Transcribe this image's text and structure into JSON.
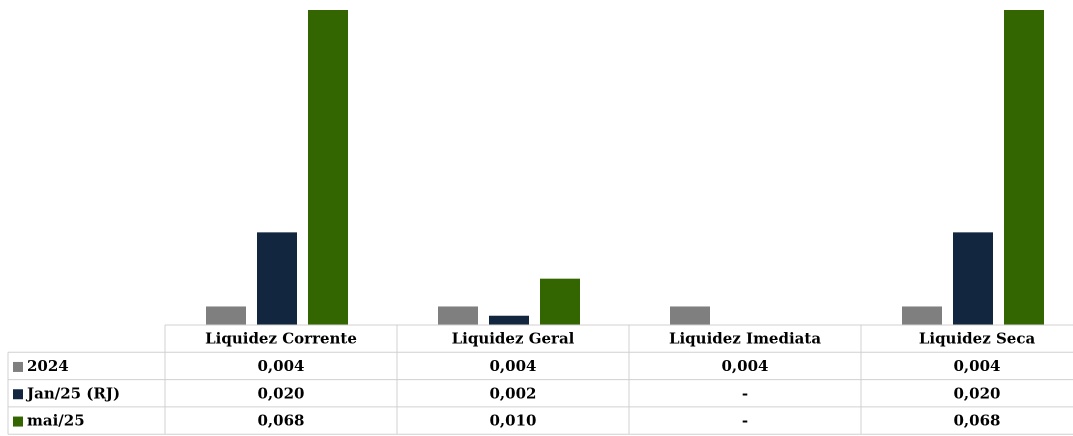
{
  "chart_data": {
    "type": "bar",
    "categories": [
      "Liquidez Corrente",
      "Liquidez Geral",
      "Liquidez Imediata",
      "Liquidez Seca"
    ],
    "series": [
      {
        "name": "2024",
        "color": "#7f7f7f",
        "values": [
          0.004,
          0.004,
          0.004,
          0.004
        ],
        "value_labels": [
          "0,004",
          "0,004",
          "0,004",
          "0,004"
        ]
      },
      {
        "name": "Jan/25 (RJ)",
        "color": "#12263f",
        "values": [
          0.02,
          0.002,
          0,
          0.02
        ],
        "value_labels": [
          "0,020",
          "0,002",
          "-",
          "0,020"
        ]
      },
      {
        "name": "mai/25",
        "color": "#336600",
        "values": [
          0.068,
          0.01,
          0,
          0.068
        ],
        "value_labels": [
          "0,068",
          "0,010",
          "-",
          "0,068"
        ]
      }
    ]
  }
}
